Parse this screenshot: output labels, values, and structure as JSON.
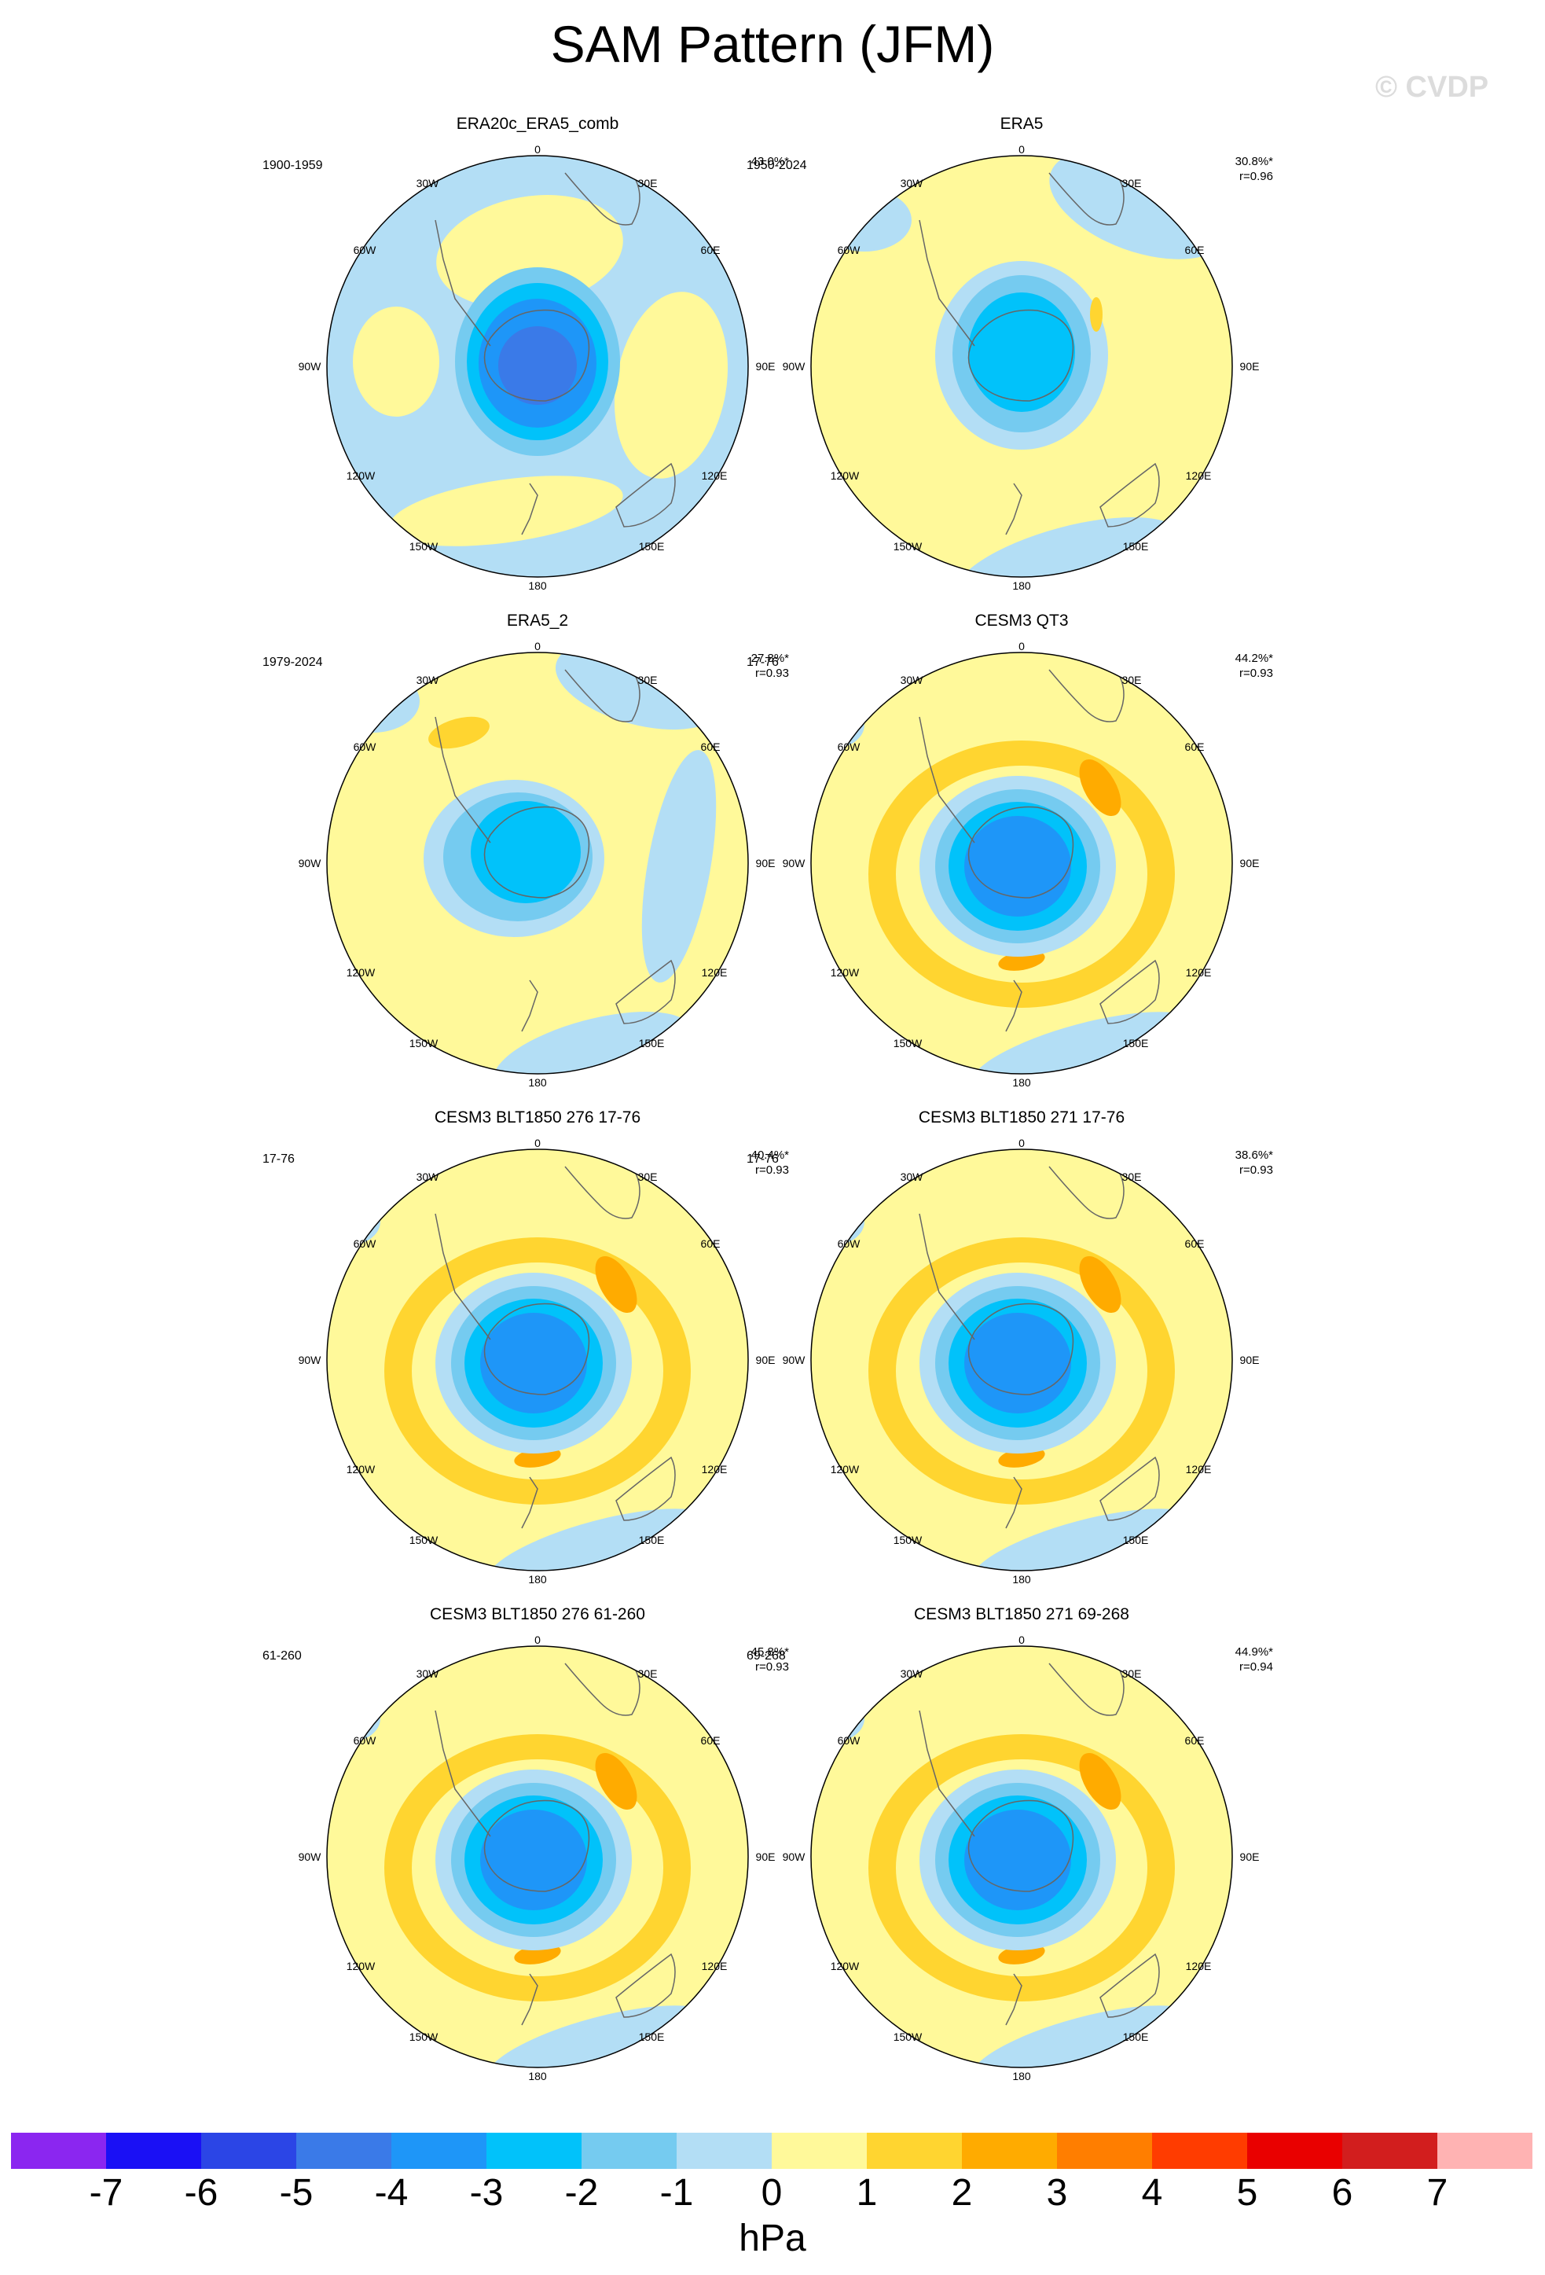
{
  "figure": {
    "title": "SAM Pattern (JFM)",
    "credit": "© CVDP",
    "colorbar": {
      "unit": "hPa",
      "ticks": [
        "-7",
        "-6",
        "-5",
        "-4",
        "-3",
        "-2",
        "-1",
        "0",
        "1",
        "2",
        "3",
        "4",
        "5",
        "6",
        "7"
      ],
      "colors": [
        "#8b26f0",
        "#1a10f5",
        "#2b45e6",
        "#3a7ae8",
        "#1e96f8",
        "#01c2fa",
        "#75cbf0",
        "#b3def5",
        "#fff99a",
        "#ffd530",
        "#ffab00",
        "#ff7e00",
        "#ff3c00",
        "#e90000",
        "#d21e1e",
        "#ffb3b3"
      ]
    },
    "map_labels": {
      "top": "0",
      "bottom": "180",
      "left": "90W",
      "right": "90E",
      "upper_left_1": "30W",
      "upper_left_2": "60W",
      "upper_right_1": "30E",
      "upper_right_2": "60E",
      "lower_left_1": "120W",
      "lower_left_2": "150W",
      "lower_right_1": "120E",
      "lower_right_2": "150E"
    }
  },
  "panels": [
    {
      "title": "ERA20c_ERA5_comb",
      "period": "1900-1959",
      "stats": "43.0%*",
      "pattern": "obs1"
    },
    {
      "title": "ERA5",
      "period": "1950-2024",
      "stats": "30.8%*\nr=0.96",
      "pattern": "obs2"
    },
    {
      "title": "ERA5_2",
      "period": "1979-2024",
      "stats": "27.8%*\nr=0.93",
      "pattern": "obs3"
    },
    {
      "title": "CESM3 QT3",
      "period": "17-76",
      "stats": "44.2%*\nr=0.93",
      "pattern": "model"
    },
    {
      "title": "CESM3 BLT1850 276 17-76",
      "period": "17-76",
      "stats": "40.4%*\nr=0.93",
      "pattern": "model"
    },
    {
      "title": "CESM3 BLT1850 271 17-76",
      "period": "17-76",
      "stats": "38.6%*\nr=0.93",
      "pattern": "model"
    },
    {
      "title": "CESM3 BLT1850 276 61-260",
      "period": "61-260",
      "stats": "45.8%*\nr=0.93",
      "pattern": "model"
    },
    {
      "title": "CESM3 BLT1850 271 69-268",
      "period": "69-268",
      "stats": "44.9%*\nr=0.94",
      "pattern": "model"
    }
  ]
}
